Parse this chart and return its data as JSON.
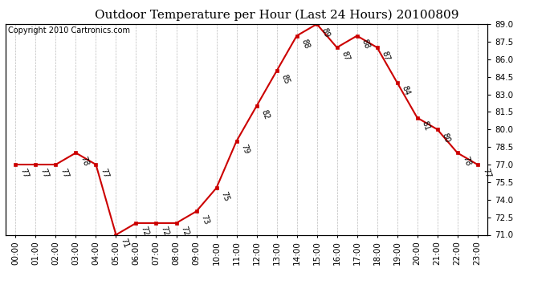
{
  "title": "Outdoor Temperature per Hour (Last 24 Hours) 20100809",
  "copyright": "Copyright 2010 Cartronics.com",
  "hours": [
    "00:00",
    "01:00",
    "02:00",
    "03:00",
    "04:00",
    "05:00",
    "06:00",
    "07:00",
    "08:00",
    "09:00",
    "10:00",
    "11:00",
    "12:00",
    "13:00",
    "14:00",
    "15:00",
    "16:00",
    "17:00",
    "18:00",
    "19:00",
    "20:00",
    "21:00",
    "22:00",
    "23:00"
  ],
  "temps": [
    77,
    77,
    77,
    78,
    77,
    71,
    72,
    72,
    72,
    73,
    75,
    79,
    82,
    85,
    88,
    89,
    87,
    88,
    87,
    84,
    81,
    80,
    78,
    77
  ],
  "ylim": [
    71.0,
    89.0
  ],
  "yticks": [
    71.0,
    72.5,
    74.0,
    75.5,
    77.0,
    78.5,
    80.0,
    81.5,
    83.0,
    84.5,
    86.0,
    87.5,
    89.0
  ],
  "line_color": "#cc0000",
  "marker_color": "#cc0000",
  "grid_color": "#bbbbbb",
  "background_color": "#ffffff",
  "title_fontsize": 11,
  "copyright_fontsize": 7,
  "label_fontsize": 7,
  "tick_fontsize": 7.5,
  "label_rotation": -70
}
